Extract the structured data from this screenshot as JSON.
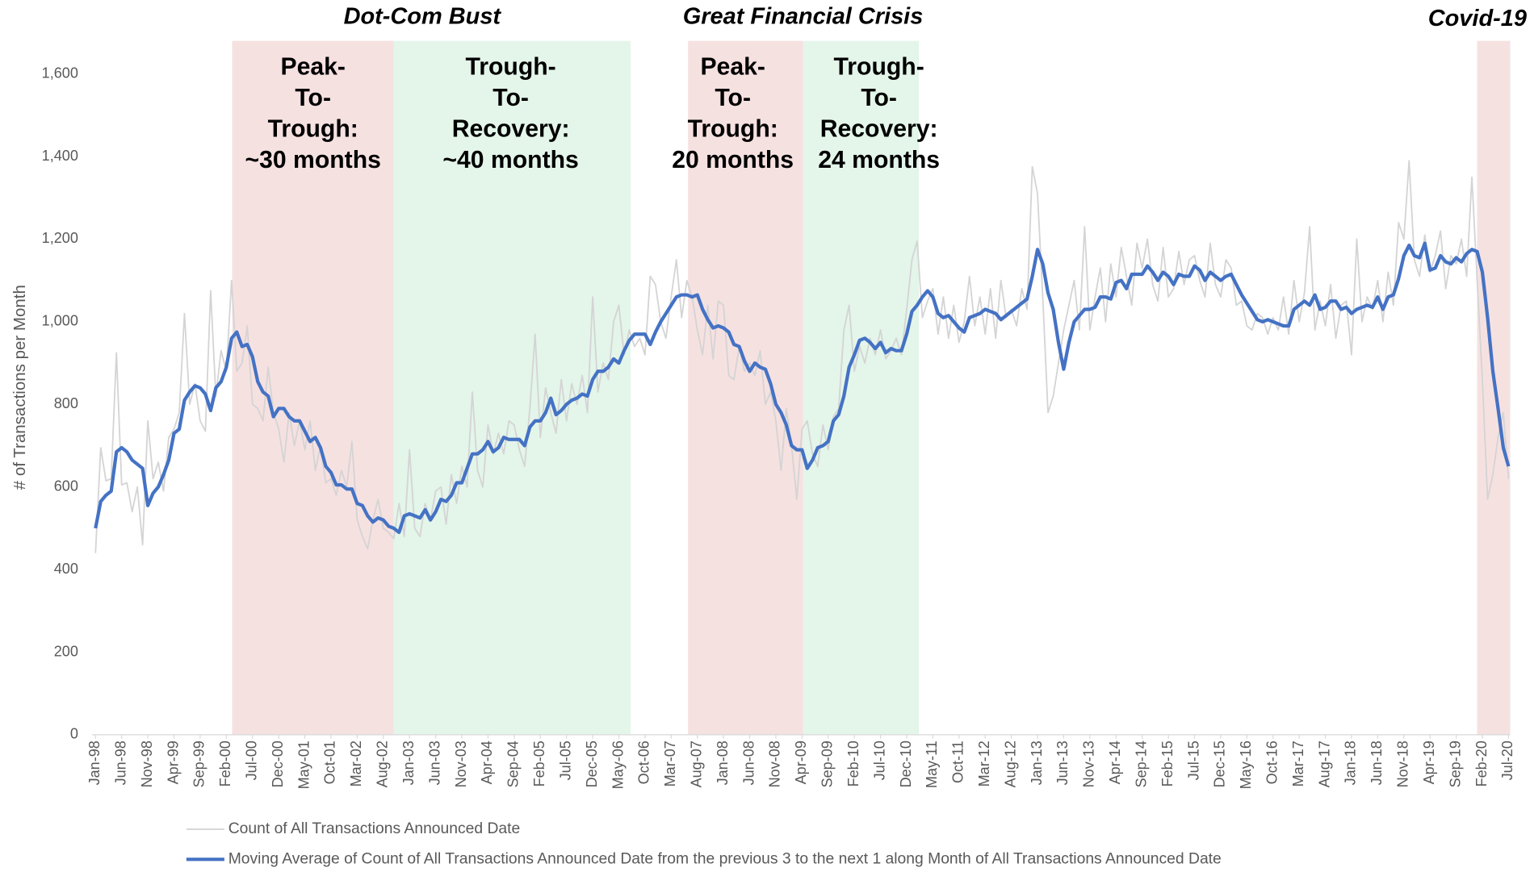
{
  "chart_data": {
    "type": "line",
    "y_label": "# of Transactions per Month",
    "annotations": [
      "Dot-Com Bust",
      "Great Financial Crisis",
      "Covid-19"
    ],
    "phase_labels": [
      [
        "Peak-",
        "To-",
        "Trough:",
        "~30 months"
      ],
      [
        "Trough-",
        "To-",
        "Recovery:",
        "~40 months"
      ],
      [
        "Peak-",
        "To-",
        "Trough:",
        "20 months"
      ],
      [
        "Trough-",
        "To-",
        "Recovery:",
        "24 months"
      ]
    ],
    "ylim": [
      0,
      1680
    ],
    "yticks": [
      0,
      200,
      400,
      600,
      800,
      {
        "value": 1000,
        "label": "1,000"
      },
      {
        "value": 1200,
        "label": "1,200"
      },
      {
        "value": 1400,
        "label": "1,400"
      },
      {
        "value": 1600,
        "label": "1,600"
      }
    ],
    "legend": "bottom",
    "categories": [
      "Jan-98",
      null,
      null,
      null,
      null,
      "Jun-98",
      null,
      null,
      null,
      null,
      "Nov-98",
      null,
      null,
      null,
      null,
      "Apr-99",
      null,
      null,
      null,
      null,
      "Sep-99",
      null,
      null,
      null,
      null,
      "Feb-00",
      null,
      null,
      null,
      null,
      "Jul-00",
      null,
      null,
      null,
      null,
      "Dec-00",
      null,
      null,
      null,
      null,
      "May-01",
      null,
      null,
      null,
      null,
      "Oct-01",
      null,
      null,
      null,
      null,
      "Mar-02",
      null,
      null,
      null,
      null,
      "Aug-02",
      null,
      null,
      null,
      null,
      "Jan-03",
      null,
      null,
      null,
      null,
      "Jun-03",
      null,
      null,
      null,
      null,
      "Nov-03",
      null,
      null,
      null,
      null,
      "Apr-04",
      null,
      null,
      null,
      null,
      "Sep-04",
      null,
      null,
      null,
      null,
      "Feb-05",
      null,
      null,
      null,
      null,
      "Jul-05",
      null,
      null,
      null,
      null,
      "Dec-05",
      null,
      null,
      null,
      null,
      "May-06",
      null,
      null,
      null,
      null,
      "Oct-06",
      null,
      null,
      null,
      null,
      "Mar-07",
      null,
      null,
      null,
      null,
      "Aug-07",
      null,
      null,
      null,
      null,
      "Jan-08",
      null,
      null,
      null,
      null,
      "Jun-08",
      null,
      null,
      null,
      null,
      "Nov-08",
      null,
      null,
      null,
      null,
      "Apr-09",
      null,
      null,
      null,
      null,
      "Sep-09",
      null,
      null,
      null,
      null,
      "Feb-10",
      null,
      null,
      null,
      null,
      "Jul-10",
      null,
      null,
      null,
      null,
      "Dec-10",
      null,
      null,
      null,
      null,
      "May-11",
      null,
      null,
      null,
      null,
      "Oct-11",
      null,
      null,
      null,
      null,
      "Mar-12",
      null,
      null,
      null,
      null,
      "Aug-12",
      null,
      null,
      null,
      null,
      "Jan-13",
      null,
      null,
      null,
      null,
      "Jun-13",
      null,
      null,
      null,
      null,
      "Nov-13",
      null,
      null,
      null,
      null,
      "Apr-14",
      null,
      null,
      null,
      null,
      "Sep-14",
      null,
      null,
      null,
      null,
      "Feb-15",
      null,
      null,
      null,
      null,
      "Jul-15",
      null,
      null,
      null,
      null,
      "Dec-15",
      null,
      null,
      null,
      null,
      "May-16",
      null,
      null,
      null,
      null,
      "Oct-16",
      null,
      null,
      null,
      null,
      "Mar-17",
      null,
      null,
      null,
      null,
      "Aug-17",
      null,
      null,
      null,
      null,
      "Jan-18",
      null,
      null,
      null,
      null,
      "Jun-18",
      null,
      null,
      null,
      null,
      "Nov-18",
      null,
      null,
      null,
      null,
      "Apr-19",
      null,
      null,
      null,
      null,
      "Sep-19",
      null,
      null,
      null,
      null,
      "Feb-20",
      null,
      null,
      null,
      null,
      "Jul-20"
    ],
    "series": [
      {
        "name": "Count of All Transactions Announced Date",
        "color": "#d4d4d4",
        "width": 1.5,
        "values": [
          440,
          695,
          615,
          620,
          925,
          605,
          610,
          540,
          600,
          460,
          760,
          620,
          660,
          590,
          720,
          740,
          780,
          1020,
          800,
          850,
          760,
          735,
          1075,
          820,
          930,
          880,
          1100,
          880,
          900,
          990,
          800,
          790,
          760,
          890,
          780,
          740,
          660,
          780,
          700,
          760,
          690,
          760,
          640,
          700,
          610,
          620,
          580,
          640,
          600,
          710,
          520,
          480,
          450,
          520,
          570,
          500,
          490,
          475,
          560,
          480,
          690,
          500,
          480,
          560,
          520,
          590,
          600,
          510,
          630,
          560,
          650,
          600,
          830,
          640,
          600,
          750,
          680,
          730,
          680,
          760,
          750,
          690,
          650,
          790,
          970,
          720,
          840,
          780,
          730,
          860,
          760,
          850,
          800,
          870,
          780,
          1060,
          830,
          900,
          860,
          1000,
          1040,
          920,
          980,
          940,
          960,
          920,
          1110,
          1090,
          1000,
          960,
          1060,
          1150,
          1010,
          1100,
          1060,
          980,
          920,
          1040,
          910,
          1050,
          1040,
          870,
          860,
          940,
          880,
          900,
          870,
          930,
          800,
          830,
          760,
          640,
          790,
          700,
          570,
          740,
          760,
          680,
          650,
          750,
          690,
          770,
          790,
          980,
          1040,
          880,
          940,
          900,
          960,
          920,
          980,
          910,
          930,
          960,
          920,
          1030,
          1150,
          1195,
          1010,
          1050,
          1080,
          970,
          1060,
          960,
          1040,
          950,
          1000,
          1110,
          990,
          1060,
          970,
          1080,
          960,
          1100,
          1010,
          1030,
          990,
          1080,
          1030,
          1375,
          1310,
          1060,
          780,
          820,
          900,
          980,
          1040,
          1100,
          980,
          1230,
          980,
          1060,
          1130,
          1000,
          1140,
          1060,
          1180,
          1110,
          1040,
          1190,
          1130,
          1200,
          1090,
          1050,
          1180,
          1060,
          1080,
          1170,
          1090,
          1150,
          1160,
          1100,
          1060,
          1190,
          1090,
          1060,
          1150,
          1130,
          1040,
          1050,
          990,
          980,
          1020,
          1010,
          970,
          1010,
          980,
          1060,
          970,
          1100,
          1000,
          1070,
          1230,
          980,
          1050,
          990,
          1090,
          960,
          1040,
          1050,
          920,
          1200,
          1000,
          1060,
          1030,
          1100,
          1000,
          1120,
          1040,
          1240,
          1200,
          1390,
          1150,
          1110,
          1210,
          1120,
          1160,
          1220,
          1080,
          1160,
          1140,
          1200,
          1110,
          1350,
          1100,
          860,
          570,
          630,
          720,
          780,
          620
        ]
      },
      {
        "name": "Moving Average of Count of All Transactions Announced Date from the previous 3 to the next 1 along Month of All Transactions Announced Date",
        "color": "#4472c4",
        "width": 3.5,
        "values": [
          500,
          565,
          580,
          590,
          685,
          695,
          685,
          665,
          655,
          645,
          555,
          585,
          600,
          630,
          665,
          730,
          740,
          810,
          830,
          845,
          840,
          825,
          785,
          840,
          855,
          890,
          960,
          975,
          940,
          945,
          915,
          855,
          830,
          820,
          770,
          790,
          790,
          770,
          760,
          760,
          735,
          710,
          720,
          695,
          650,
          635,
          605,
          605,
          595,
          595,
          560,
          555,
          530,
          515,
          525,
          520,
          505,
          500,
          490,
          530,
          535,
          530,
          525,
          545,
          520,
          540,
          570,
          565,
          580,
          610,
          610,
          645,
          680,
          680,
          690,
          710,
          685,
          695,
          720,
          715,
          715,
          715,
          700,
          745,
          760,
          760,
          780,
          815,
          775,
          785,
          800,
          810,
          815,
          825,
          820,
          860,
          880,
          880,
          890,
          910,
          900,
          930,
          955,
          970,
          970,
          970,
          945,
          975,
          1000,
          1020,
          1040,
          1060,
          1065,
          1065,
          1060,
          1065,
          1030,
          1005,
          985,
          990,
          985,
          975,
          945,
          940,
          905,
          880,
          900,
          890,
          885,
          850,
          800,
          780,
          750,
          700,
          690,
          690,
          645,
          665,
          695,
          700,
          710,
          760,
          775,
          820,
          890,
          920,
          955,
          960,
          950,
          935,
          950,
          925,
          935,
          930,
          930,
          970,
          1025,
          1040,
          1060,
          1075,
          1060,
          1020,
          1010,
          1015,
          1000,
          985,
          975,
          1010,
          1015,
          1020,
          1030,
          1025,
          1020,
          1005,
          1015,
          1025,
          1035,
          1045,
          1055,
          1110,
          1175,
          1140,
          1070,
          1030,
          950,
          885,
          950,
          1000,
          1015,
          1030,
          1030,
          1035,
          1060,
          1060,
          1055,
          1095,
          1100,
          1080,
          1115,
          1115,
          1115,
          1135,
          1120,
          1100,
          1120,
          1110,
          1090,
          1115,
          1110,
          1110,
          1135,
          1125,
          1100,
          1120,
          1110,
          1100,
          1110,
          1115,
          1090,
          1065,
          1045,
          1025,
          1005,
          1000,
          1005,
          1000,
          995,
          990,
          990,
          1030,
          1040,
          1050,
          1040,
          1065,
          1030,
          1035,
          1050,
          1050,
          1030,
          1035,
          1020,
          1030,
          1035,
          1040,
          1035,
          1060,
          1030,
          1060,
          1065,
          1105,
          1160,
          1185,
          1160,
          1155,
          1190,
          1125,
          1130,
          1160,
          1145,
          1140,
          1155,
          1145,
          1165,
          1175,
          1170,
          1120,
          1010,
          880,
          790,
          695,
          650
        ]
      }
    ]
  }
}
